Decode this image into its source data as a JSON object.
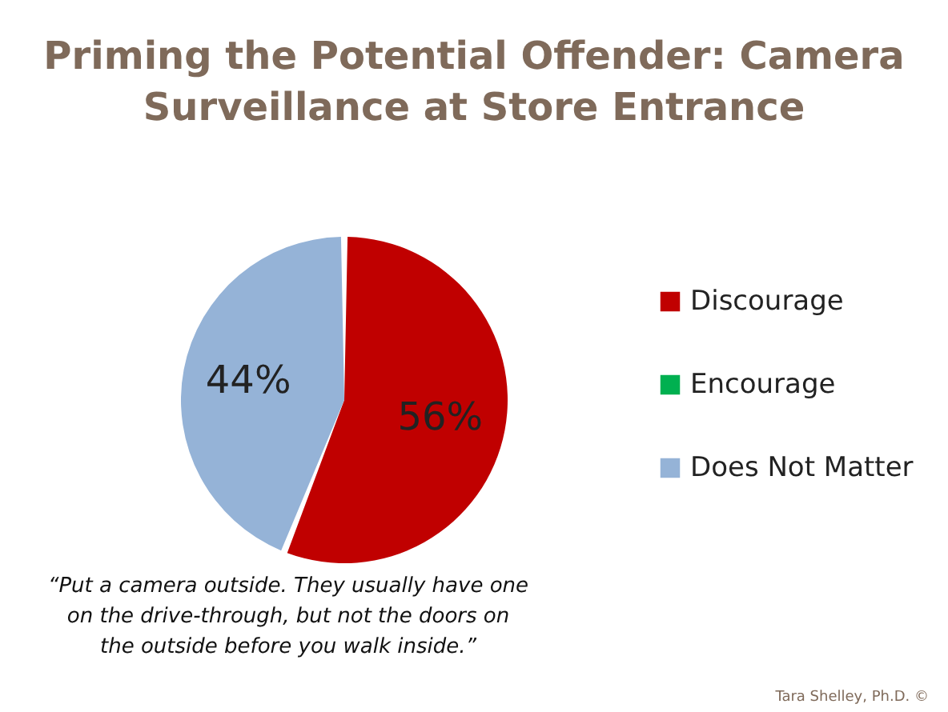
{
  "chart_data": {
    "type": "pie",
    "title": [
      "Priming the Potential Offender: Camera",
      "Surveillance at Store Entrance"
    ],
    "categories": [
      "Discourage",
      "Encourage",
      "Does Not Matter"
    ],
    "values": [
      56,
      0,
      44
    ],
    "colors": [
      "#c00000",
      "#00b050",
      "#95b3d7"
    ],
    "value_labels": [
      "56%",
      null,
      "44%"
    ],
    "legend": "right",
    "annotations": [
      "“Put a camera outside. They usually have one on the drive-through, but not the doors on the outside before you walk inside.”",
      "Tara Shelley, Ph.D. ©"
    ]
  }
}
